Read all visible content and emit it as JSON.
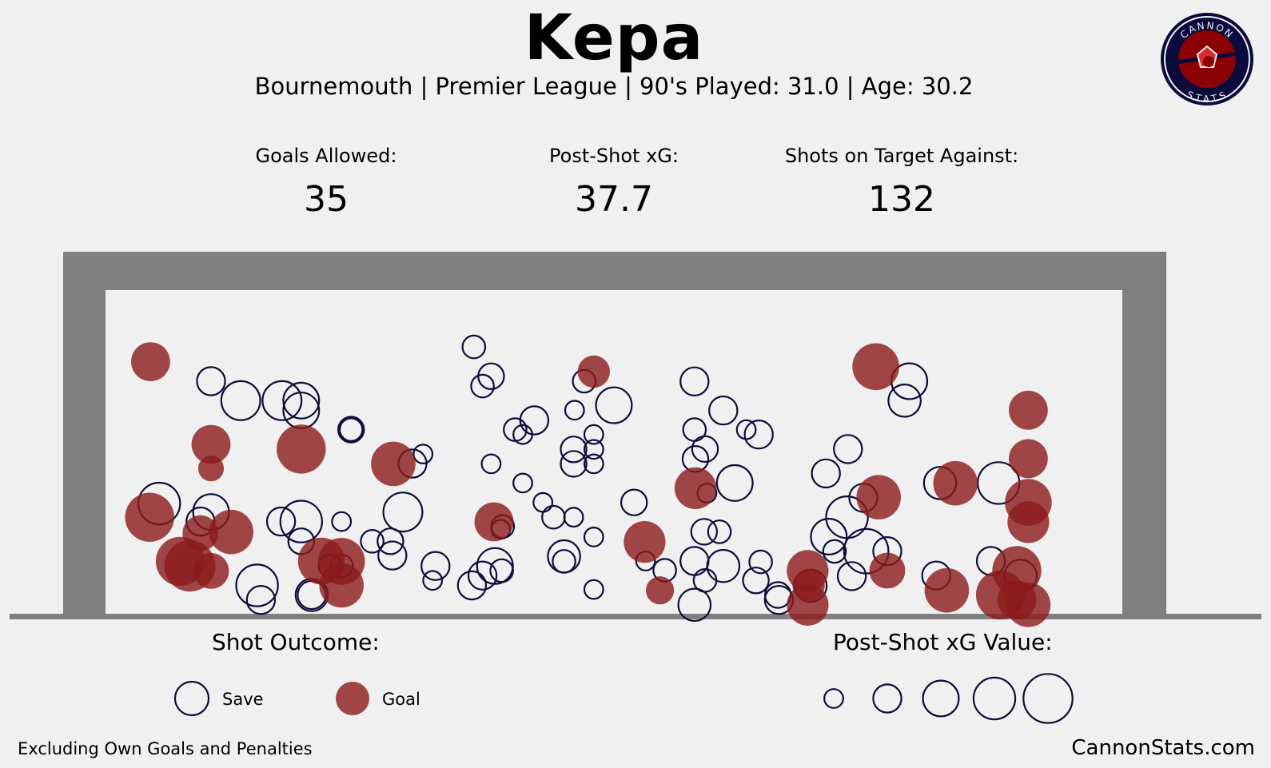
{
  "header": {
    "title": "Kepa",
    "subtitle": "Bournemouth  | Premier League | 90's Played: 31.0 | Age: 30.2"
  },
  "stats": [
    {
      "label": "Goals Allowed:",
      "value": "35"
    },
    {
      "label": "Post-Shot xG:",
      "value": "37.7"
    },
    {
      "label": "Shots on Target Against:",
      "value": "132"
    }
  ],
  "logo": {
    "top_text": "CANNON",
    "bottom_text": "STATS",
    "colors": {
      "ring": "#0a0a3c",
      "fill": "#8b0000",
      "inner": "#d32f2f"
    }
  },
  "legend": {
    "outcome_title": "Shot Outcome:",
    "save_label": "Save",
    "goal_label": "Goal",
    "size_title": "Post-Shot xG Value:",
    "size_values": [
      0.05,
      0.2,
      0.4,
      0.6,
      0.9
    ]
  },
  "footer": {
    "note": "Excluding Own Goals and Penalties",
    "site": "CannonStats.com"
  },
  "colors": {
    "save": "#0d0d3b",
    "goal": "#8b1a1a",
    "frame": "#808080",
    "background": "#f0f0f0"
  },
  "chart_data": {
    "type": "scatter",
    "description_axes": "goal mouth shot map; x = horizontal position across goal, y = height above ground",
    "xlim": [
      0,
      1
    ],
    "ylim": [
      0,
      1
    ],
    "grid": false,
    "series": [
      {
        "name": "Save",
        "points": [
          [
            0.369,
            0.906,
            0.1
          ],
          [
            0.095,
            0.788,
            0.2
          ],
          [
            0.126,
            0.721,
            0.5
          ],
          [
            0.169,
            0.721,
            0.5
          ],
          [
            0.189,
            0.721,
            0.4
          ],
          [
            0.189,
            0.687,
            0.4
          ],
          [
            0.241,
            0.621,
            0.15
          ],
          [
            0.241,
            0.621,
            0.1
          ],
          [
            0.305,
            0.504,
            0.2
          ],
          [
            0.316,
            0.537,
            0.05
          ],
          [
            0.041,
            0.366,
            0.6
          ],
          [
            0.095,
            0.337,
            0.4
          ],
          [
            0.084,
            0.304,
            0.2
          ],
          [
            0.168,
            0.304,
            0.2
          ],
          [
            0.189,
            0.304,
            0.6
          ],
          [
            0.189,
            0.236,
            0.15
          ],
          [
            0.231,
            0.304,
            0.05
          ],
          [
            0.263,
            0.236,
            0.1
          ],
          [
            0.282,
            0.236,
            0.15
          ],
          [
            0.295,
            0.337,
            0.5
          ],
          [
            0.284,
            0.187,
            0.2
          ],
          [
            0.219,
            0.151,
            0.1
          ],
          [
            0.231,
            0.151,
            0.1
          ],
          [
            0.143,
            0.084,
            0.6
          ],
          [
            0.147,
            0.034,
            0.2
          ],
          [
            0.2,
            0.051,
            0.3
          ],
          [
            0.2,
            0.051,
            0.2
          ],
          [
            0.329,
            0.151,
            0.2
          ],
          [
            0.326,
            0.101,
            0.05
          ],
          [
            0.391,
            0.151,
            0.4
          ],
          [
            0.378,
            0.118,
            0.2
          ],
          [
            0.367,
            0.084,
            0.2
          ],
          [
            0.398,
            0.135,
            0.1
          ],
          [
            0.399,
            0.287,
            0.1
          ],
          [
            0.397,
            0.277,
            0.05
          ],
          [
            0.378,
            0.771,
            0.1
          ],
          [
            0.387,
            0.805,
            0.15
          ],
          [
            0.432,
            0.653,
            0.2
          ],
          [
            0.412,
            0.621,
            0.1
          ],
          [
            0.42,
            0.604,
            0.05
          ],
          [
            0.387,
            0.503,
            0.05
          ],
          [
            0.42,
            0.437,
            0.05
          ],
          [
            0.441,
            0.37,
            0.05
          ],
          [
            0.452,
            0.319,
            0.1
          ],
          [
            0.473,
            0.553,
            0.15
          ],
          [
            0.473,
            0.503,
            0.15
          ],
          [
            0.494,
            0.553,
            0.05
          ],
          [
            0.494,
            0.604,
            0.05
          ],
          [
            0.494,
            0.503,
            0.05
          ],
          [
            0.473,
            0.319,
            0.05
          ],
          [
            0.494,
            0.251,
            0.05
          ],
          [
            0.463,
            0.184,
            0.3
          ],
          [
            0.463,
            0.167,
            0.1
          ],
          [
            0.494,
            0.07,
            0.05
          ],
          [
            0.484,
            0.788,
            0.1
          ],
          [
            0.474,
            0.688,
            0.05
          ],
          [
            0.515,
            0.705,
            0.4
          ],
          [
            0.536,
            0.37,
            0.15
          ],
          [
            0.548,
            0.168,
            0.05
          ],
          [
            0.568,
            0.136,
            0.1
          ],
          [
            0.599,
            0.787,
            0.2
          ],
          [
            0.629,
            0.687,
            0.2
          ],
          [
            0.599,
            0.621,
            0.1
          ],
          [
            0.61,
            0.554,
            0.15
          ],
          [
            0.6,
            0.52,
            0.15
          ],
          [
            0.612,
            0.402,
            0.05
          ],
          [
            0.609,
            0.269,
            0.15
          ],
          [
            0.625,
            0.269,
            0.1
          ],
          [
            0.599,
            0.168,
            0.2
          ],
          [
            0.61,
            0.101,
            0.1
          ],
          [
            0.629,
            0.151,
            0.3
          ],
          [
            0.663,
            0.101,
            0.15
          ],
          [
            0.668,
            0.165,
            0.1
          ],
          [
            0.686,
            0.051,
            0.15
          ],
          [
            0.653,
            0.621,
            0.05
          ],
          [
            0.666,
            0.604,
            0.2
          ],
          [
            0.641,
            0.437,
            0.4
          ],
          [
            0.599,
            0.017,
            0.3
          ],
          [
            0.687,
            0.034,
            0.2
          ],
          [
            0.736,
            0.47,
            0.2
          ],
          [
            0.775,
            0.386,
            0.2
          ],
          [
            0.739,
            0.252,
            0.4
          ],
          [
            0.758,
            0.319,
            0.6
          ],
          [
            0.778,
            0.202,
            0.7
          ],
          [
            0.745,
            0.201,
            0.1
          ],
          [
            0.8,
            0.202,
            0.2
          ],
          [
            0.763,
            0.116,
            0.2
          ],
          [
            0.72,
            0.083,
            0.3
          ],
          [
            0.759,
            0.554,
            0.2
          ],
          [
            0.823,
            0.788,
            0.4
          ],
          [
            0.818,
            0.721,
            0.3
          ],
          [
            0.916,
            0.437,
            0.6
          ],
          [
            0.855,
            0.437,
            0.3
          ],
          [
            0.851,
            0.118,
            0.2
          ],
          [
            0.908,
            0.168,
            0.2
          ],
          [
            0.939,
            0.117,
            0.3
          ]
        ]
      },
      {
        "name": "Goal",
        "points": [
          [
            0.032,
            0.855,
            0.5
          ],
          [
            0.095,
            0.57,
            0.5
          ],
          [
            0.095,
            0.487,
            0.15
          ],
          [
            0.189,
            0.554,
            0.9
          ],
          [
            0.285,
            0.503,
            0.7
          ],
          [
            0.031,
            0.319,
            0.9
          ],
          [
            0.063,
            0.167,
            0.9
          ],
          [
            0.073,
            0.151,
            1.0
          ],
          [
            0.084,
            0.264,
            0.4
          ],
          [
            0.095,
            0.134,
            0.4
          ],
          [
            0.116,
            0.268,
            0.7
          ],
          [
            0.21,
            0.168,
            0.8
          ],
          [
            0.231,
            0.167,
            0.8
          ],
          [
            0.231,
            0.084,
            0.7
          ],
          [
            0.39,
            0.303,
            0.5
          ],
          [
            0.494,
            0.821,
            0.3
          ],
          [
            0.547,
            0.234,
            0.6
          ],
          [
            0.563,
            0.067,
            0.2
          ],
          [
            0.6,
            0.419,
            0.6
          ],
          [
            0.788,
            0.838,
            0.8
          ],
          [
            0.791,
            0.388,
            0.7
          ],
          [
            0.8,
            0.135,
            0.4
          ],
          [
            0.717,
            0.134,
            0.6
          ],
          [
            0.718,
            0.084,
            0.3
          ],
          [
            0.717,
            0.017,
            0.6
          ],
          [
            0.871,
            0.436,
            0.7
          ],
          [
            0.862,
            0.067,
            0.7
          ],
          [
            0.947,
            0.688,
            0.5
          ],
          [
            0.947,
            0.521,
            0.5
          ],
          [
            0.947,
            0.37,
            0.8
          ],
          [
            0.947,
            0.302,
            0.6
          ],
          [
            0.935,
            0.135,
            0.9
          ],
          [
            0.918,
            0.051,
            0.9
          ],
          [
            0.935,
            0.034,
            0.5
          ],
          [
            0.947,
            0.017,
            0.7
          ]
        ]
      }
    ]
  }
}
